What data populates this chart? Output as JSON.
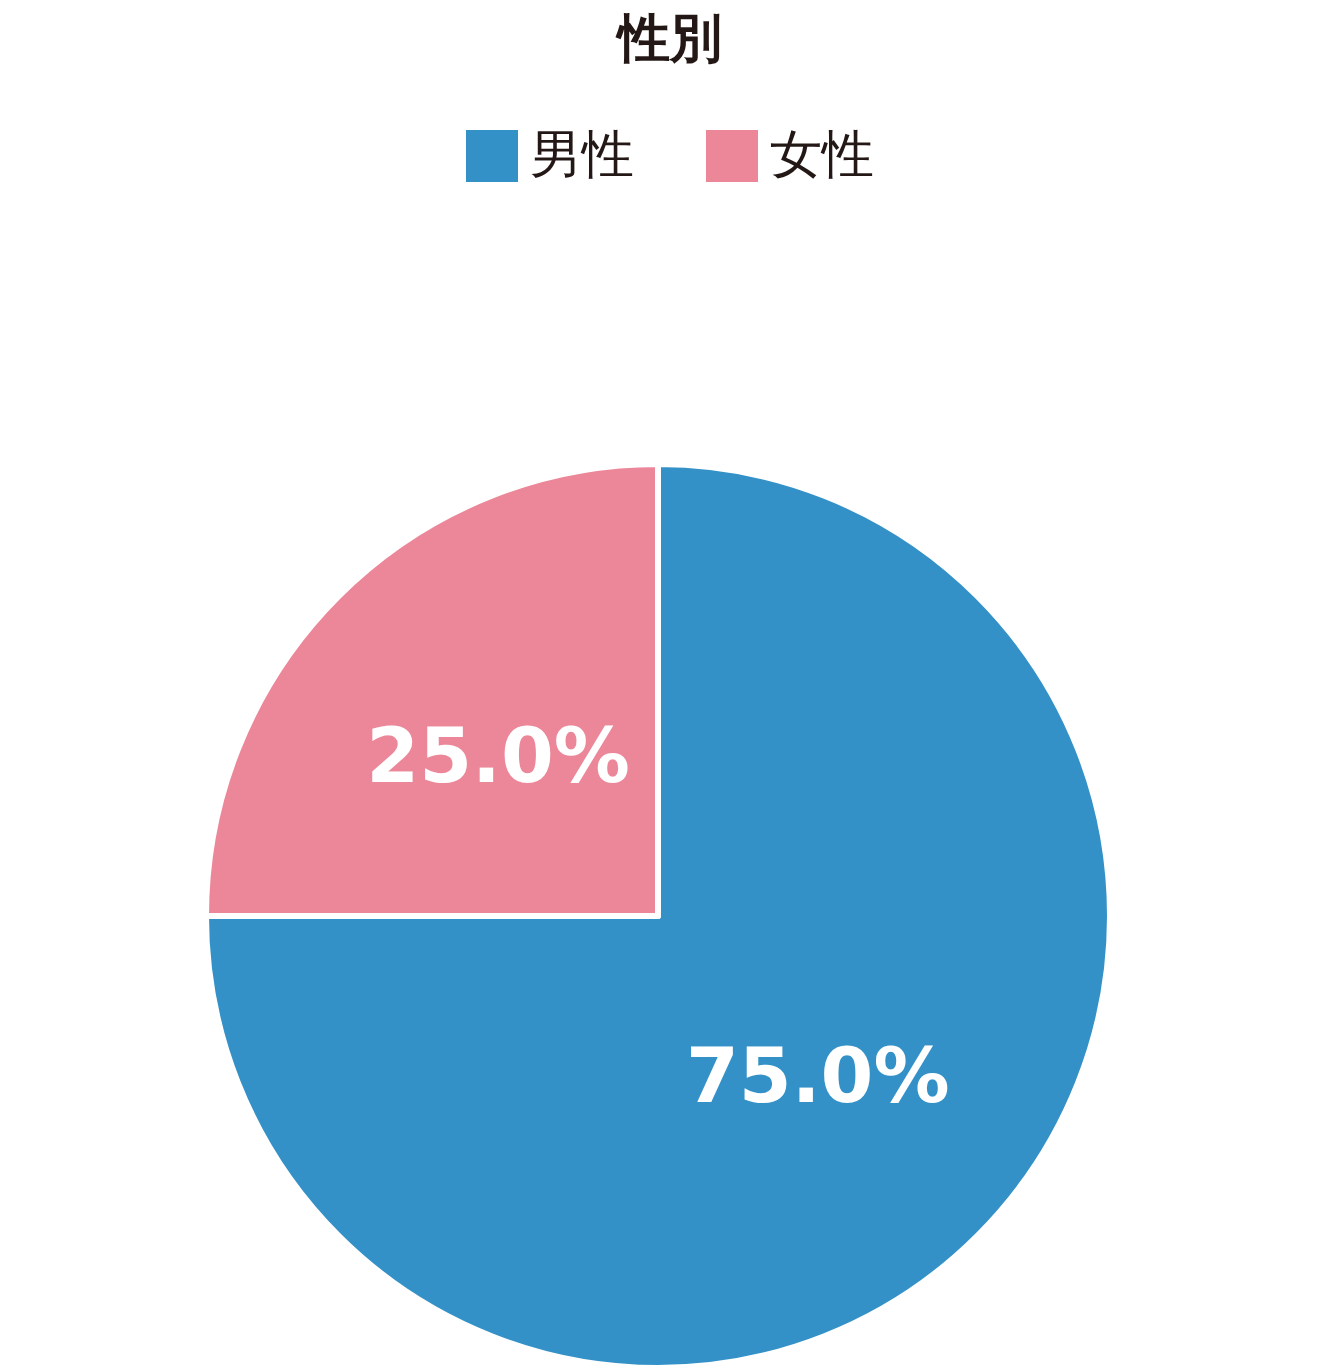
{
  "chart_data": {
    "type": "pie",
    "title": "性別",
    "categories": [
      "男性",
      "女性"
    ],
    "values": [
      75.0,
      25.0
    ],
    "colors": [
      "#3391c7",
      "#eb8799"
    ],
    "value_labels": [
      "75.0%",
      "25.0%"
    ],
    "legend": "top"
  }
}
